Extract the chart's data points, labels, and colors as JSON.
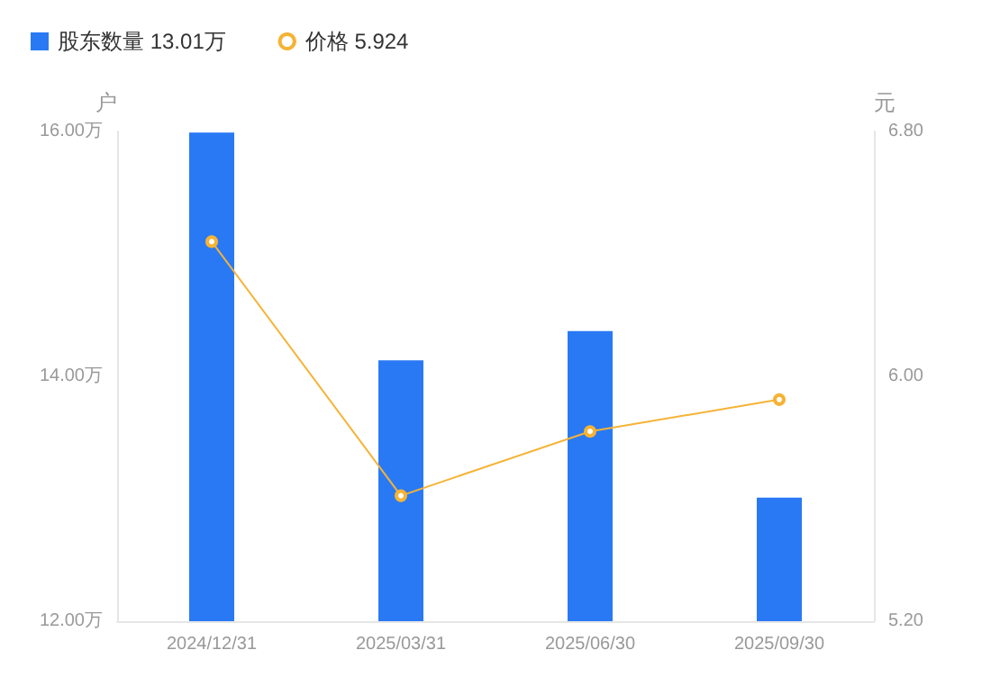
{
  "chart_data": {
    "type": "bar",
    "categories": [
      "2024/12/31",
      "2025/03/31",
      "2025/06/30",
      "2025/09/30"
    ],
    "ylabel": "户",
    "y2label": "元",
    "series": [
      {
        "name": "股东数量 13.01万",
        "color": "#2979f5",
        "values": [
          15.99,
          14.13,
          14.37,
          13.01
        ]
      },
      {
        "name": "价格 5.924",
        "type": "line",
        "axis": "y2",
        "color": "#f5b335",
        "values": [
          6.44,
          5.61,
          5.82,
          5.924
        ]
      }
    ],
    "ylim": [
      12,
      16
    ],
    "yticks": [
      {
        "value": 12,
        "label": "12.00万"
      },
      {
        "value": 14,
        "label": "14.00万"
      },
      {
        "value": 16,
        "label": "16.00万"
      }
    ],
    "y2lim": [
      5.2,
      6.8
    ],
    "y2ticks": [
      {
        "value": 5.2,
        "label": "5.20"
      },
      {
        "value": 6,
        "label": "6.00"
      },
      {
        "value": 6.8,
        "label": "6.80"
      }
    ],
    "legend": "top left",
    "marker": "circle",
    "line_style": "solid",
    "grid": false
  }
}
